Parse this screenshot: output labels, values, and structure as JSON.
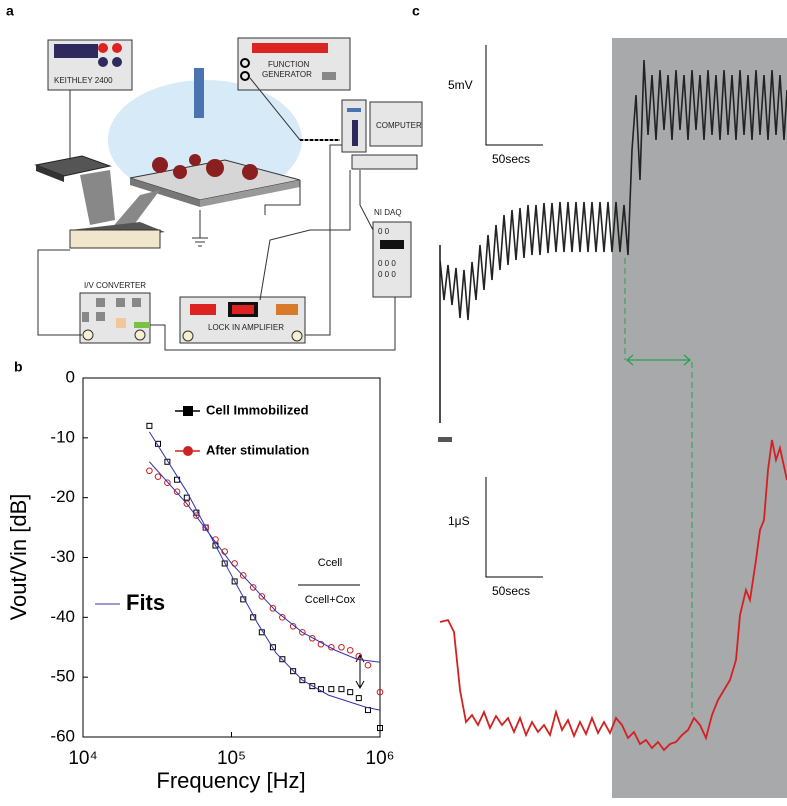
{
  "panel_labels": {
    "a": "a",
    "b": "b",
    "c": "c"
  },
  "setup": {
    "keithley": "KEITHLEY 2400",
    "function_generator": [
      "FUNCTION",
      "GENERATOR"
    ],
    "computer": "COMPUTER",
    "daq": "NI DAQ",
    "daq_digits": [
      "0 0",
      "0 0 0",
      "0 0 0"
    ],
    "iv_converter": "I/V CONVERTER",
    "lock_in": "LOCK IN AMPLIFIER"
  },
  "traces": {
    "voltage_scale": "5mV",
    "voltage_time_scale": "50secs",
    "conductance_scale": "1μS",
    "conductance_time_scale": "50secs"
  },
  "chart_data": {
    "type": "scatter",
    "xscale": "log",
    "xlabel": "Frequency [Hz]",
    "ylabel": "Vout/Vin [dB]",
    "xlim": [
      10000,
      1000000
    ],
    "ylim": [
      -60,
      0
    ],
    "xticks": [
      {
        "value": 10000,
        "label": "10⁴"
      },
      {
        "value": 100000,
        "label": "10⁵"
      },
      {
        "value": 1000000,
        "label": "10⁶"
      }
    ],
    "yticks": [
      0,
      -10,
      -20,
      -30,
      -40,
      -50,
      -60
    ],
    "annotation": {
      "numerator": "Ccell",
      "denominator": "Ccell+Cox"
    },
    "series": [
      {
        "name": "Cell Immobilized",
        "color": "#000000",
        "marker": "square",
        "x": [
          28000,
          32000,
          37000,
          43000,
          50000,
          58000,
          67000,
          78000,
          90000,
          105000,
          120000,
          140000,
          160000,
          190000,
          220000,
          260000,
          300000,
          350000,
          400000,
          470000,
          550000,
          630000,
          720000,
          830000,
          1000000
        ],
        "values": [
          -8,
          -11,
          -14,
          -17,
          -20,
          -22.5,
          -25,
          -28,
          -31,
          -34,
          -37,
          -40,
          -42.5,
          -45,
          -47,
          -49,
          -50.5,
          -51.5,
          -52,
          -52,
          -52,
          -52.5,
          -53.5,
          -55.5,
          -58.5
        ]
      },
      {
        "name": "After stimulation",
        "color": "#cc2222",
        "marker": "circle",
        "x": [
          28000,
          32000,
          37000,
          43000,
          50000,
          58000,
          67000,
          78000,
          90000,
          105000,
          120000,
          140000,
          160000,
          190000,
          220000,
          260000,
          300000,
          350000,
          400000,
          470000,
          550000,
          630000,
          720000,
          830000,
          1000000
        ],
        "values": [
          -15.5,
          -16.5,
          -17.5,
          -19,
          -21,
          -23,
          -25,
          -27,
          -29,
          -31,
          -33,
          -35,
          -36.5,
          -38.5,
          -40,
          -41.5,
          -42.5,
          -43.5,
          -44.5,
          -45,
          -45,
          -45.5,
          -46.5,
          -48,
          -52.5
        ]
      },
      {
        "name": "Fits",
        "color": "#3333aa",
        "marker": "line",
        "x": [
          28000,
          50000,
          100000,
          150000,
          200000,
          300000,
          450000,
          600000,
          800000,
          1000000,
          null,
          28000,
          50000,
          100000,
          200000,
          300000,
          500000,
          700000,
          1000000
        ],
        "values": [
          -9,
          -19,
          -33,
          -41,
          -46,
          -50.5,
          -53,
          -54,
          -55,
          -55.5,
          null,
          -14,
          -21,
          -31,
          -39,
          -42.5,
          -45.5,
          -47,
          -47.5
        ]
      }
    ]
  }
}
